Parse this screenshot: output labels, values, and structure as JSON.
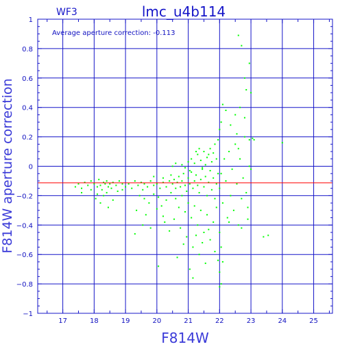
{
  "chart_data": {
    "type": "scatter",
    "title": "lmc_u4b114",
    "label_left": "WF3",
    "annotation": "Average aperture correction:  -0.113",
    "xlabel": "F814W",
    "ylabel": "F814W aperture correction",
    "xlim": [
      16.2,
      25.6
    ],
    "ylim": [
      -1,
      1
    ],
    "xticks": [
      17,
      18,
      19,
      20,
      21,
      22,
      23,
      24,
      25
    ],
    "yticks": [
      -1,
      -0.8,
      -0.6,
      -0.4,
      -0.2,
      0,
      0.2,
      0.4,
      0.6,
      0.8,
      1
    ],
    "ytick_labels": [
      "−1",
      "−0.8",
      "−0.6",
      "−0.4",
      "−0.2",
      "0",
      "0.2",
      "0.4",
      "0.6",
      "0.8",
      "1"
    ],
    "grid": true,
    "reference_line": {
      "y": -0.113,
      "color": "#ff0000"
    },
    "colors": {
      "axes": "#1414c8",
      "points": "#00ff00"
    },
    "series": [
      {
        "points": [
          [
            17.4,
            -0.14
          ],
          [
            17.5,
            -0.12
          ],
          [
            17.6,
            -0.15
          ],
          [
            17.7,
            -0.11
          ],
          [
            17.8,
            -0.13
          ],
          [
            17.9,
            -0.1
          ],
          [
            18.0,
            -0.12
          ],
          [
            18.1,
            -0.14
          ],
          [
            18.15,
            -0.09
          ],
          [
            18.2,
            -0.13
          ],
          [
            18.25,
            -0.16
          ],
          [
            18.3,
            -0.11
          ],
          [
            18.35,
            -0.12
          ],
          [
            18.4,
            -0.1
          ],
          [
            18.45,
            -0.14
          ],
          [
            18.5,
            -0.12
          ],
          [
            18.55,
            -0.15
          ],
          [
            18.6,
            -0.11
          ],
          [
            18.7,
            -0.13
          ],
          [
            18.8,
            -0.1
          ],
          [
            18.9,
            -0.12
          ],
          [
            19.0,
            -0.14
          ],
          [
            18.05,
            -0.22
          ],
          [
            18.2,
            -0.25
          ],
          [
            18.4,
            -0.18
          ],
          [
            18.6,
            -0.23
          ],
          [
            18.1,
            -0.19
          ],
          [
            18.3,
            -0.2
          ],
          [
            18.45,
            -0.28
          ],
          [
            18.75,
            -0.17
          ],
          [
            17.6,
            -0.18
          ],
          [
            17.9,
            -0.16
          ],
          [
            18.9,
            -0.16
          ],
          [
            19.1,
            -0.12
          ],
          [
            19.2,
            -0.15
          ],
          [
            19.3,
            -0.1
          ],
          [
            19.4,
            -0.13
          ],
          [
            19.5,
            -0.11
          ],
          [
            19.55,
            -0.16
          ],
          [
            19.6,
            -0.12
          ],
          [
            19.7,
            -0.14
          ],
          [
            19.8,
            -0.1
          ],
          [
            19.9,
            -0.13
          ],
          [
            20.0,
            -0.12
          ],
          [
            20.1,
            -0.15
          ],
          [
            20.2,
            -0.11
          ],
          [
            20.3,
            -0.14
          ],
          [
            20.4,
            -0.1
          ],
          [
            19.45,
            -0.2
          ],
          [
            19.6,
            -0.22
          ],
          [
            19.75,
            -0.25
          ],
          [
            19.9,
            -0.19
          ],
          [
            20.05,
            -0.21
          ],
          [
            20.15,
            -0.27
          ],
          [
            20.3,
            -0.23
          ],
          [
            20.45,
            -0.18
          ],
          [
            19.35,
            -0.3
          ],
          [
            19.65,
            -0.33
          ],
          [
            20.0,
            -0.29
          ],
          [
            20.2,
            -0.34
          ],
          [
            19.55,
            -0.4
          ],
          [
            20.25,
            -0.38
          ],
          [
            19.3,
            -0.46
          ],
          [
            19.8,
            -0.42
          ],
          [
            20.4,
            -0.44
          ],
          [
            19.9,
            -0.07
          ],
          [
            20.2,
            -0.08
          ],
          [
            20.45,
            -0.06
          ],
          [
            20.5,
            -0.12
          ],
          [
            20.55,
            -0.09
          ],
          [
            20.6,
            -0.15
          ],
          [
            20.65,
            -0.11
          ],
          [
            20.7,
            -0.07
          ],
          [
            20.75,
            -0.14
          ],
          [
            20.8,
            -0.1
          ],
          [
            20.85,
            -0.05
          ],
          [
            20.9,
            -0.13
          ],
          [
            20.95,
            -0.17
          ],
          [
            21.0,
            -0.08
          ],
          [
            21.05,
            -0.12
          ],
          [
            21.1,
            -0.04
          ],
          [
            21.15,
            -0.15
          ],
          [
            21.2,
            -0.1
          ],
          [
            21.25,
            -0.06
          ],
          [
            21.3,
            -0.13
          ],
          [
            21.35,
            -0.18
          ],
          [
            21.4,
            -0.09
          ],
          [
            21.45,
            -0.02
          ],
          [
            21.5,
            -0.14
          ],
          [
            21.55,
            -0.07
          ],
          [
            21.6,
            -0.2
          ],
          [
            21.65,
            -0.11
          ],
          [
            21.7,
            -0.03
          ],
          [
            21.75,
            -0.16
          ],
          [
            21.8,
            -0.08
          ],
          [
            21.85,
            -0.22
          ],
          [
            21.9,
            -0.12
          ],
          [
            21.95,
            -0.05
          ],
          [
            20.6,
            -0.22
          ],
          [
            20.7,
            -0.28
          ],
          [
            20.8,
            -0.2
          ],
          [
            20.9,
            -0.31
          ],
          [
            21.0,
            -0.25
          ],
          [
            21.1,
            -0.35
          ],
          [
            21.2,
            -0.27
          ],
          [
            21.3,
            -0.4
          ],
          [
            21.4,
            -0.3
          ],
          [
            21.5,
            -0.45
          ],
          [
            21.6,
            -0.33
          ],
          [
            21.7,
            -0.5
          ],
          [
            21.8,
            -0.38
          ],
          [
            21.9,
            -0.28
          ],
          [
            20.55,
            -0.36
          ],
          [
            20.75,
            -0.42
          ],
          [
            20.95,
            -0.48
          ],
          [
            21.15,
            -0.55
          ],
          [
            21.35,
            -0.6
          ],
          [
            21.25,
            -0.47
          ],
          [
            21.45,
            -0.52
          ],
          [
            21.65,
            -0.43
          ],
          [
            21.85,
            -0.58
          ],
          [
            20.85,
            -0.53
          ],
          [
            20.65,
            -0.62
          ],
          [
            21.05,
            -0.7
          ],
          [
            21.55,
            -0.66
          ],
          [
            21.15,
            -0.76
          ],
          [
            21.95,
            -0.64
          ],
          [
            20.05,
            -0.68
          ],
          [
            20.5,
            0.0
          ],
          [
            20.6,
            0.02
          ],
          [
            20.8,
            0.01
          ],
          [
            21.0,
            0.03
          ],
          [
            21.1,
            0.05
          ],
          [
            21.2,
            0.02
          ],
          [
            21.3,
            0.08
          ],
          [
            21.4,
            0.04
          ],
          [
            21.5,
            0.1
          ],
          [
            21.55,
            0.01
          ],
          [
            21.6,
            0.06
          ],
          [
            21.7,
            0.12
          ],
          [
            21.75,
            0.03
          ],
          [
            21.8,
            0.09
          ],
          [
            21.85,
            0.15
          ],
          [
            21.9,
            0.05
          ],
          [
            21.95,
            0.18
          ],
          [
            21.35,
            0.12
          ],
          [
            21.25,
            0.1
          ],
          [
            21.65,
            0.08
          ],
          [
            21.45,
            -0.01
          ],
          [
            21.05,
            -0.03
          ],
          [
            20.9,
            -0.01
          ],
          [
            22.0,
            -0.15
          ],
          [
            22.05,
            -0.05
          ],
          [
            22.1,
            -0.25
          ],
          [
            22.15,
            0.05
          ],
          [
            22.2,
            -0.1
          ],
          [
            22.25,
            -0.35
          ],
          [
            22.3,
            0.1
          ],
          [
            22.35,
            -0.2
          ],
          [
            22.4,
            -0.02
          ],
          [
            22.45,
            -0.3
          ],
          [
            22.5,
            0.15
          ],
          [
            22.55,
            -0.12
          ],
          [
            22.6,
            -0.4
          ],
          [
            22.65,
            0.05
          ],
          [
            22.7,
            -0.22
          ],
          [
            22.75,
            -0.08
          ],
          [
            22.8,
            0.2
          ],
          [
            22.85,
            -0.18
          ],
          [
            22.9,
            -0.28
          ],
          [
            22.95,
            0.0
          ],
          [
            22.0,
            0.25
          ],
          [
            22.05,
            0.3
          ],
          [
            22.1,
            0.42
          ],
          [
            22.2,
            0.38
          ],
          [
            22.35,
            0.28
          ],
          [
            22.5,
            0.35
          ],
          [
            22.55,
            0.22
          ],
          [
            22.6,
            0.12
          ],
          [
            22.65,
            0.4
          ],
          [
            22.8,
            0.33
          ],
          [
            22.95,
            0.18
          ],
          [
            22.0,
            -0.45
          ],
          [
            22.05,
            -0.55
          ],
          [
            22.1,
            -0.65
          ],
          [
            22.0,
            -0.72
          ],
          [
            22.05,
            -0.8
          ],
          [
            22.0,
            -0.82
          ],
          [
            22.3,
            -0.38
          ],
          [
            22.7,
            -0.42
          ],
          [
            22.9,
            -0.36
          ],
          [
            22.6,
            0.89
          ],
          [
            22.7,
            0.82
          ],
          [
            22.8,
            0.6
          ],
          [
            22.85,
            0.52
          ],
          [
            23.0,
            0.5
          ],
          [
            22.95,
            0.7
          ],
          [
            23.05,
            0.19
          ],
          [
            23.1,
            0.18
          ],
          [
            23.4,
            -0.48
          ],
          [
            23.55,
            -0.47
          ],
          [
            24.0,
            0.16
          ],
          [
            23.0,
            -0.02
          ]
        ]
      }
    ]
  }
}
